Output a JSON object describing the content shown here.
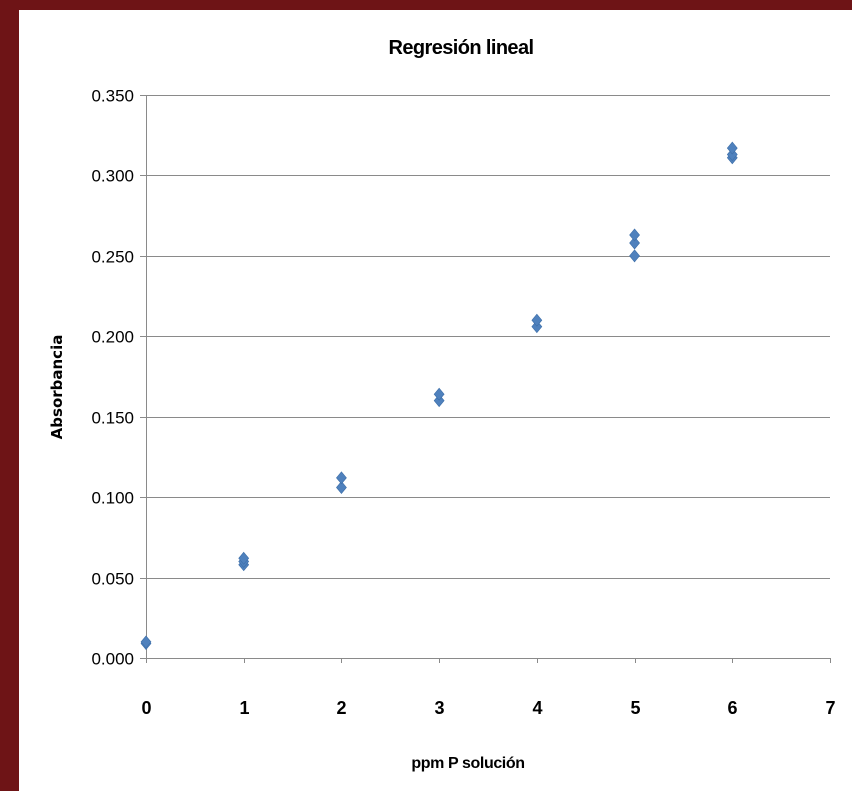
{
  "chart_data": {
    "type": "scatter",
    "title": "Regresión lineal",
    "xlabel": "ppm P solución",
    "ylabel": "Absorbancia",
    "xlim": [
      0,
      7
    ],
    "ylim": [
      0,
      0.35
    ],
    "x_ticks": [
      "0",
      "1",
      "2",
      "3",
      "4",
      "5",
      "6",
      "7"
    ],
    "y_ticks": [
      "0.000",
      "0.050",
      "0.100",
      "0.150",
      "0.200",
      "0.250",
      "0.300",
      "0.350"
    ],
    "grid": "horizontal",
    "legend": "none",
    "marker": "diamond",
    "color": "#4f81bd",
    "series": [
      {
        "x": [
          0,
          0,
          1,
          1,
          1,
          2,
          2,
          3,
          3,
          4,
          4,
          5,
          5,
          5,
          6,
          6,
          6
        ],
        "y": [
          0.009,
          0.01,
          0.058,
          0.06,
          0.062,
          0.106,
          0.112,
          0.16,
          0.164,
          0.206,
          0.21,
          0.25,
          0.258,
          0.263,
          0.311,
          0.313,
          0.317
        ]
      }
    ]
  }
}
